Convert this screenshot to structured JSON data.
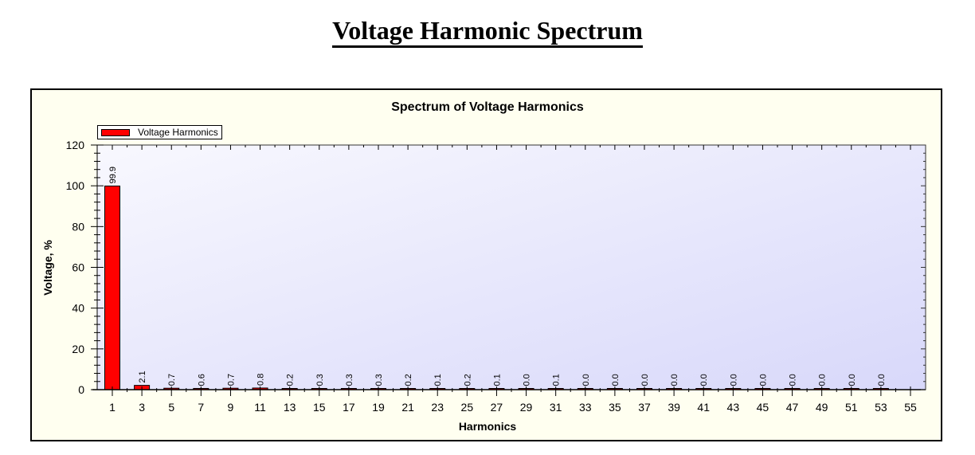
{
  "page": {
    "title": "Voltage Harmonic Spectrum"
  },
  "chart": {
    "title": "Spectrum of Voltage Harmonics",
    "legend_label": "Voltage Harmonics",
    "xlabel": "Harmonics",
    "ylabel": "Voltage, %",
    "bar_color": "#ff0000"
  },
  "chart_data": {
    "type": "bar",
    "title": "Spectrum of Voltage Harmonics",
    "xlabel": "Harmonics",
    "ylabel": "Voltage, %",
    "ylim": [
      0,
      120
    ],
    "yticks": [
      0,
      20,
      40,
      60,
      80,
      100,
      120
    ],
    "grid": false,
    "legend_position": "top-left",
    "categories": [
      "1",
      "3",
      "5",
      "7",
      "9",
      "11",
      "13",
      "15",
      "17",
      "19",
      "21",
      "23",
      "25",
      "27",
      "29",
      "31",
      "33",
      "35",
      "37",
      "39",
      "41",
      "43",
      "45",
      "47",
      "49",
      "51",
      "53",
      "55"
    ],
    "series": [
      {
        "name": "Voltage Harmonics",
        "values": [
          99.9,
          2.1,
          0.7,
          0.6,
          0.7,
          0.8,
          0.2,
          0.3,
          0.3,
          0.3,
          0.2,
          0.1,
          0.2,
          0.1,
          0.0,
          0.1,
          0.0,
          0.0,
          0.0,
          0.0,
          0.0,
          0.0,
          0.0,
          0.0,
          0.0,
          0.0,
          0.0,
          null
        ],
        "labels": [
          "99.9",
          "2.1",
          "0.7",
          "0.6",
          "0.7",
          "0.8",
          "0.2",
          "0.3",
          "0.3",
          "0.3",
          "0.2",
          "0.1",
          "0.2",
          "0.1",
          "0.0",
          "0.1",
          "0.0",
          "0.0",
          "0.0",
          "0.0",
          "0.0",
          "0.0",
          "0.0",
          "0.0",
          "0.0",
          "0.0",
          "0.0",
          ""
        ]
      }
    ]
  }
}
